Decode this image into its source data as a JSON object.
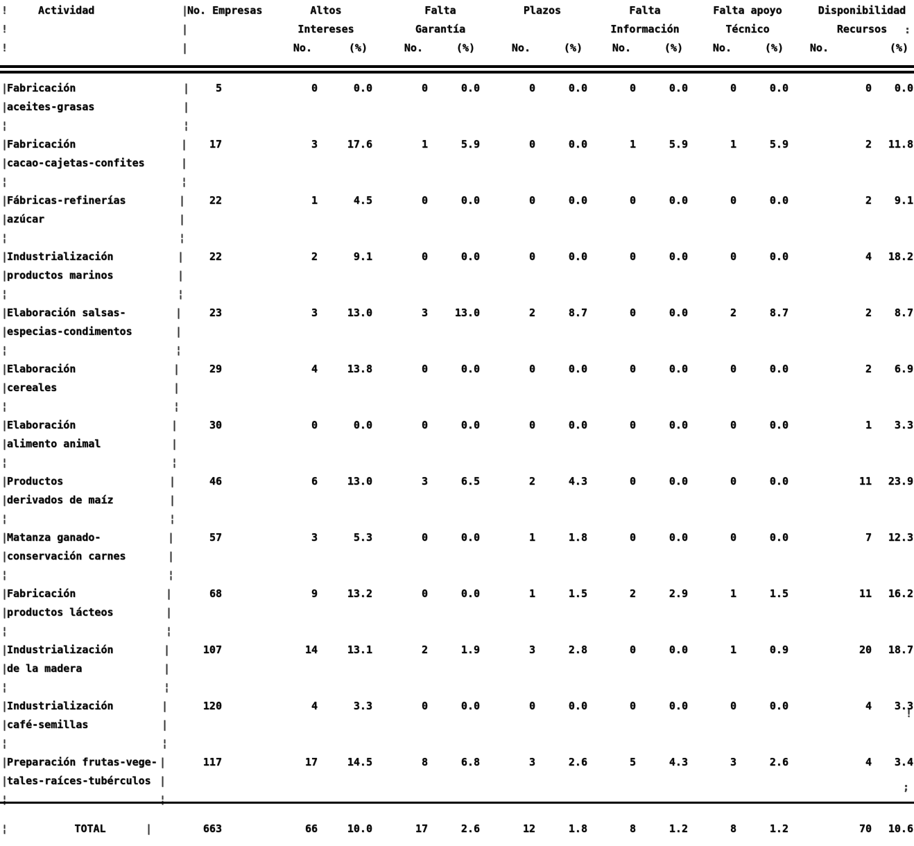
{
  "table": {
    "activity_header": "Actividad",
    "empresas_header": "No. Empresas",
    "sub_no": "No.",
    "sub_pct": "(%)",
    "col_groups": [
      {
        "title_lines": [
          "Altos",
          "Intereses"
        ]
      },
      {
        "title_lines": [
          "Falta",
          "Garantía"
        ]
      },
      {
        "title_lines": [
          "Plazos",
          ""
        ]
      },
      {
        "title_lines": [
          "Falta",
          "Información"
        ]
      },
      {
        "title_lines": [
          "Falta apoyo",
          "Técnico"
        ]
      },
      {
        "title_lines": [
          "Disponibilidad",
          "Recursos"
        ]
      }
    ],
    "rows": [
      {
        "label_lines": [
          "Fabricación",
          "aceites-grasas"
        ],
        "empresas": "5",
        "values": [
          "0",
          "0.0",
          "0",
          "0.0",
          "0",
          "0.0",
          "0",
          "0.0",
          "0",
          "0.0",
          "0",
          "0.0"
        ]
      },
      {
        "label_lines": [
          "Fabricación",
          "cacao-cajetas-confites"
        ],
        "empresas": "17",
        "values": [
          "3",
          "17.6",
          "1",
          "5.9",
          "0",
          "0.0",
          "1",
          "5.9",
          "1",
          "5.9",
          "2",
          "11.8"
        ]
      },
      {
        "label_lines": [
          "Fábricas-refinerías",
          "azúcar"
        ],
        "empresas": "22",
        "values": [
          "1",
          "4.5",
          "0",
          "0.0",
          "0",
          "0.0",
          "0",
          "0.0",
          "0",
          "0.0",
          "2",
          "9.1"
        ]
      },
      {
        "label_lines": [
          "Industrialización",
          "productos marinos"
        ],
        "empresas": "22",
        "values": [
          "2",
          "9.1",
          "0",
          "0.0",
          "0",
          "0.0",
          "0",
          "0.0",
          "0",
          "0.0",
          "4",
          "18.2"
        ]
      },
      {
        "label_lines": [
          "Elaboración salsas-",
          "especias-condimentos"
        ],
        "empresas": "23",
        "values": [
          "3",
          "13.0",
          "3",
          "13.0",
          "2",
          "8.7",
          "0",
          "0.0",
          "2",
          "8.7",
          "2",
          "8.7"
        ]
      },
      {
        "label_lines": [
          "Elaboración",
          "cereales"
        ],
        "empresas": "29",
        "values": [
          "4",
          "13.8",
          "0",
          "0.0",
          "0",
          "0.0",
          "0",
          "0.0",
          "0",
          "0.0",
          "2",
          "6.9"
        ]
      },
      {
        "label_lines": [
          "Elaboración",
          "alimento animal"
        ],
        "empresas": "30",
        "values": [
          "0",
          "0.0",
          "0",
          "0.0",
          "0",
          "0.0",
          "0",
          "0.0",
          "0",
          "0.0",
          "1",
          "3.3"
        ]
      },
      {
        "label_lines": [
          "Productos",
          "derivados de maíz"
        ],
        "empresas": "46",
        "values": [
          "6",
          "13.0",
          "3",
          "6.5",
          "2",
          "4.3",
          "0",
          "0.0",
          "0",
          "0.0",
          "11",
          "23.9"
        ]
      },
      {
        "label_lines": [
          "Matanza ganado-",
          "conservación carnes"
        ],
        "empresas": "57",
        "values": [
          "3",
          "5.3",
          "0",
          "0.0",
          "1",
          "1.8",
          "0",
          "0.0",
          "0",
          "0.0",
          "7",
          "12.3"
        ]
      },
      {
        "label_lines": [
          "Fabricación",
          "productos lácteos"
        ],
        "empresas": "68",
        "values": [
          "9",
          "13.2",
          "0",
          "0.0",
          "1",
          "1.5",
          "2",
          "2.9",
          "1",
          "1.5",
          "11",
          "16.2"
        ]
      },
      {
        "label_lines": [
          "Industrialización",
          "de la madera"
        ],
        "empresas": "107",
        "values": [
          "14",
          "13.1",
          "2",
          "1.9",
          "3",
          "2.8",
          "0",
          "0.0",
          "1",
          "0.9",
          "20",
          "18.7"
        ]
      },
      {
        "label_lines": [
          "Industrialización",
          "café-semillas"
        ],
        "empresas": "120",
        "values": [
          "4",
          "3.3",
          "0",
          "0.0",
          "0",
          "0.0",
          "0",
          "0.0",
          "0",
          "0.0",
          "4",
          "3.3"
        ]
      },
      {
        "label_lines": [
          "Preparación frutas-vege-",
          "tales-raíces-tubérculos"
        ],
        "empresas": "117",
        "values": [
          "17",
          "14.5",
          "8",
          "6.8",
          "3",
          "2.6",
          "5",
          "4.3",
          "3",
          "2.6",
          "4",
          "3.4"
        ]
      }
    ],
    "total": {
      "label": "TOTAL",
      "empresas": "663",
      "values": [
        "66",
        "10.0",
        "17",
        "2.6",
        "12",
        "1.8",
        "8",
        "1.2",
        "8",
        "1.2",
        "70",
        "10.6"
      ]
    },
    "stray_marks": [
      ":",
      "!",
      ";"
    ]
  }
}
